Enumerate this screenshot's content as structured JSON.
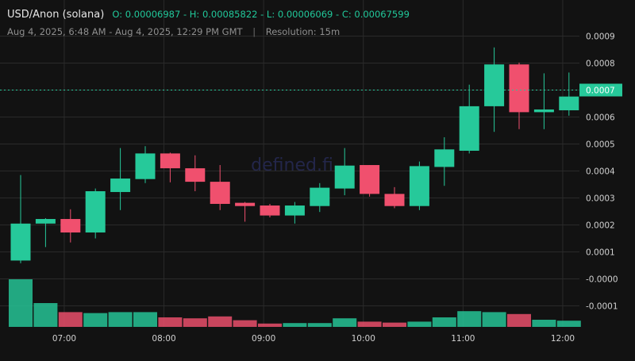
{
  "header": {
    "symbol": "USD/Anon (solana)",
    "ohlc_text": "O: 0.00006987 - H: 0.00085822 - L: 0.00006069 - C: 0.00067599",
    "date_range": "Aug 4, 2025, 6:48 AM - Aug 4, 2025, 12:29 PM GMT",
    "separator": "|",
    "resolution": "Resolution: 15m"
  },
  "watermark": "defined.fi",
  "colors": {
    "background": "#121212",
    "up": "#26c99a",
    "down": "#f0506e",
    "grid": "#2a2a2a",
    "axis_text": "#d0d0d0",
    "price_line": "#26c99a"
  },
  "chart_data": {
    "type": "candlestick",
    "resolution": "15m",
    "price_axis": {
      "ylim": [
        -0.00019,
        0.00099
      ],
      "ticks": [
        0.0009,
        0.0008,
        0.0007,
        0.0006,
        0.0005,
        0.0004,
        0.0003,
        0.0002,
        0.0001,
        -0.0,
        -0.0001
      ],
      "tick_labels": [
        "0.0009",
        "0.0008",
        "0.0007",
        "0.0006",
        "0.0005",
        "0.0004",
        "0.0003",
        "0.0002",
        "0.0001",
        "-0.0000",
        "-0.0001"
      ]
    },
    "time_axis": {
      "tick_labels": [
        "07:00",
        "08:00",
        "09:00",
        "10:00",
        "11:00",
        "12:00"
      ],
      "tick_indices": [
        1.75,
        5.75,
        9.75,
        13.75,
        17.75,
        21.75
      ]
    },
    "current_price": 0.0007,
    "current_price_label": "0.0007",
    "candles": [
      {
        "o": 6.8e-05,
        "h": 0.000385,
        "l": 5.8e-05,
        "c": 0.000205
      },
      {
        "o": 0.000205,
        "h": 0.000225,
        "l": 0.000118,
        "c": 0.000222
      },
      {
        "o": 0.000222,
        "h": 0.000258,
        "l": 0.000135,
        "c": 0.000172
      },
      {
        "o": 0.000172,
        "h": 0.000335,
        "l": 0.00015,
        "c": 0.000325
      },
      {
        "o": 0.000322,
        "h": 0.000485,
        "l": 0.000255,
        "c": 0.000372
      },
      {
        "o": 0.00037,
        "h": 0.000492,
        "l": 0.000355,
        "c": 0.000465
      },
      {
        "o": 0.000465,
        "h": 0.000468,
        "l": 0.000358,
        "c": 0.00041
      },
      {
        "o": 0.00041,
        "h": 0.000458,
        "l": 0.000325,
        "c": 0.00036
      },
      {
        "o": 0.00036,
        "h": 0.000422,
        "l": 0.000255,
        "c": 0.000278
      },
      {
        "o": 0.000282,
        "h": 0.000285,
        "l": 0.000212,
        "c": 0.00027
      },
      {
        "o": 0.000272,
        "h": 0.000278,
        "l": 0.000228,
        "c": 0.000235
      },
      {
        "o": 0.000235,
        "h": 0.000285,
        "l": 0.000205,
        "c": 0.000272
      },
      {
        "o": 0.00027,
        "h": 0.000355,
        "l": 0.000248,
        "c": 0.000338
      },
      {
        "o": 0.000335,
        "h": 0.000485,
        "l": 0.00031,
        "c": 0.00042
      },
      {
        "o": 0.000422,
        "h": 0.000422,
        "l": 0.000305,
        "c": 0.000315
      },
      {
        "o": 0.000315,
        "h": 0.00034,
        "l": 0.000262,
        "c": 0.00027
      },
      {
        "o": 0.00027,
        "h": 0.000435,
        "l": 0.000255,
        "c": 0.000418
      },
      {
        "o": 0.000415,
        "h": 0.000525,
        "l": 0.000345,
        "c": 0.00048
      },
      {
        "o": 0.000475,
        "h": 0.00072,
        "l": 0.000465,
        "c": 0.00064
      },
      {
        "o": 0.00064,
        "h": 0.000858,
        "l": 0.000545,
        "c": 0.000795
      },
      {
        "o": 0.000795,
        "h": 0.000802,
        "l": 0.000555,
        "c": 0.000618
      },
      {
        "o": 0.000618,
        "h": 0.000762,
        "l": 0.000555,
        "c": 0.000628
      },
      {
        "o": 0.000625,
        "h": 0.000765,
        "l": 0.000605,
        "c": 0.000676
      }
    ],
    "volume_relative": [
      1.0,
      0.5,
      0.31,
      0.29,
      0.31,
      0.31,
      0.2,
      0.18,
      0.22,
      0.14,
      0.07,
      0.08,
      0.08,
      0.18,
      0.11,
      0.09,
      0.11,
      0.2,
      0.33,
      0.31,
      0.27,
      0.15,
      0.13
    ]
  }
}
